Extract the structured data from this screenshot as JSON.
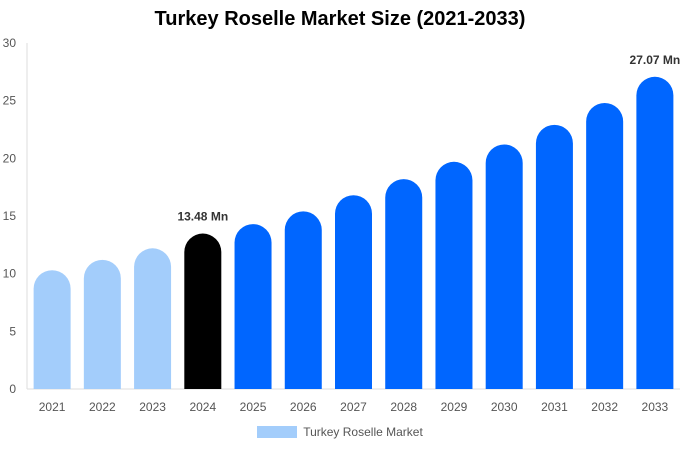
{
  "chart_data": {
    "type": "bar",
    "title": "Turkey Roselle Market Size (2021-2033)",
    "categories": [
      "2021",
      "2022",
      "2023",
      "2024",
      "2025",
      "2026",
      "2027",
      "2028",
      "2029",
      "2030",
      "2031",
      "2032",
      "2033"
    ],
    "series": [
      {
        "name": "Turkey Roselle Market",
        "values": [
          10.3,
          11.2,
          12.2,
          13.48,
          14.3,
          15.4,
          16.8,
          18.2,
          19.7,
          21.2,
          22.9,
          24.8,
          27.07
        ]
      }
    ],
    "data_labels": [
      {
        "category": "2024",
        "text": "13.48 Mn"
      },
      {
        "category": "2033",
        "text": "27.07 Mn"
      }
    ],
    "ylim": [
      0,
      30
    ],
    "yticks": [
      0,
      5,
      10,
      15,
      20,
      25,
      30
    ],
    "grid": false,
    "legend_position": "bottom",
    "colors": {
      "historical": "#a3cdfb",
      "base_year": "#000000",
      "forecast": "#0066ff",
      "legend": "#a3cdfb"
    }
  }
}
